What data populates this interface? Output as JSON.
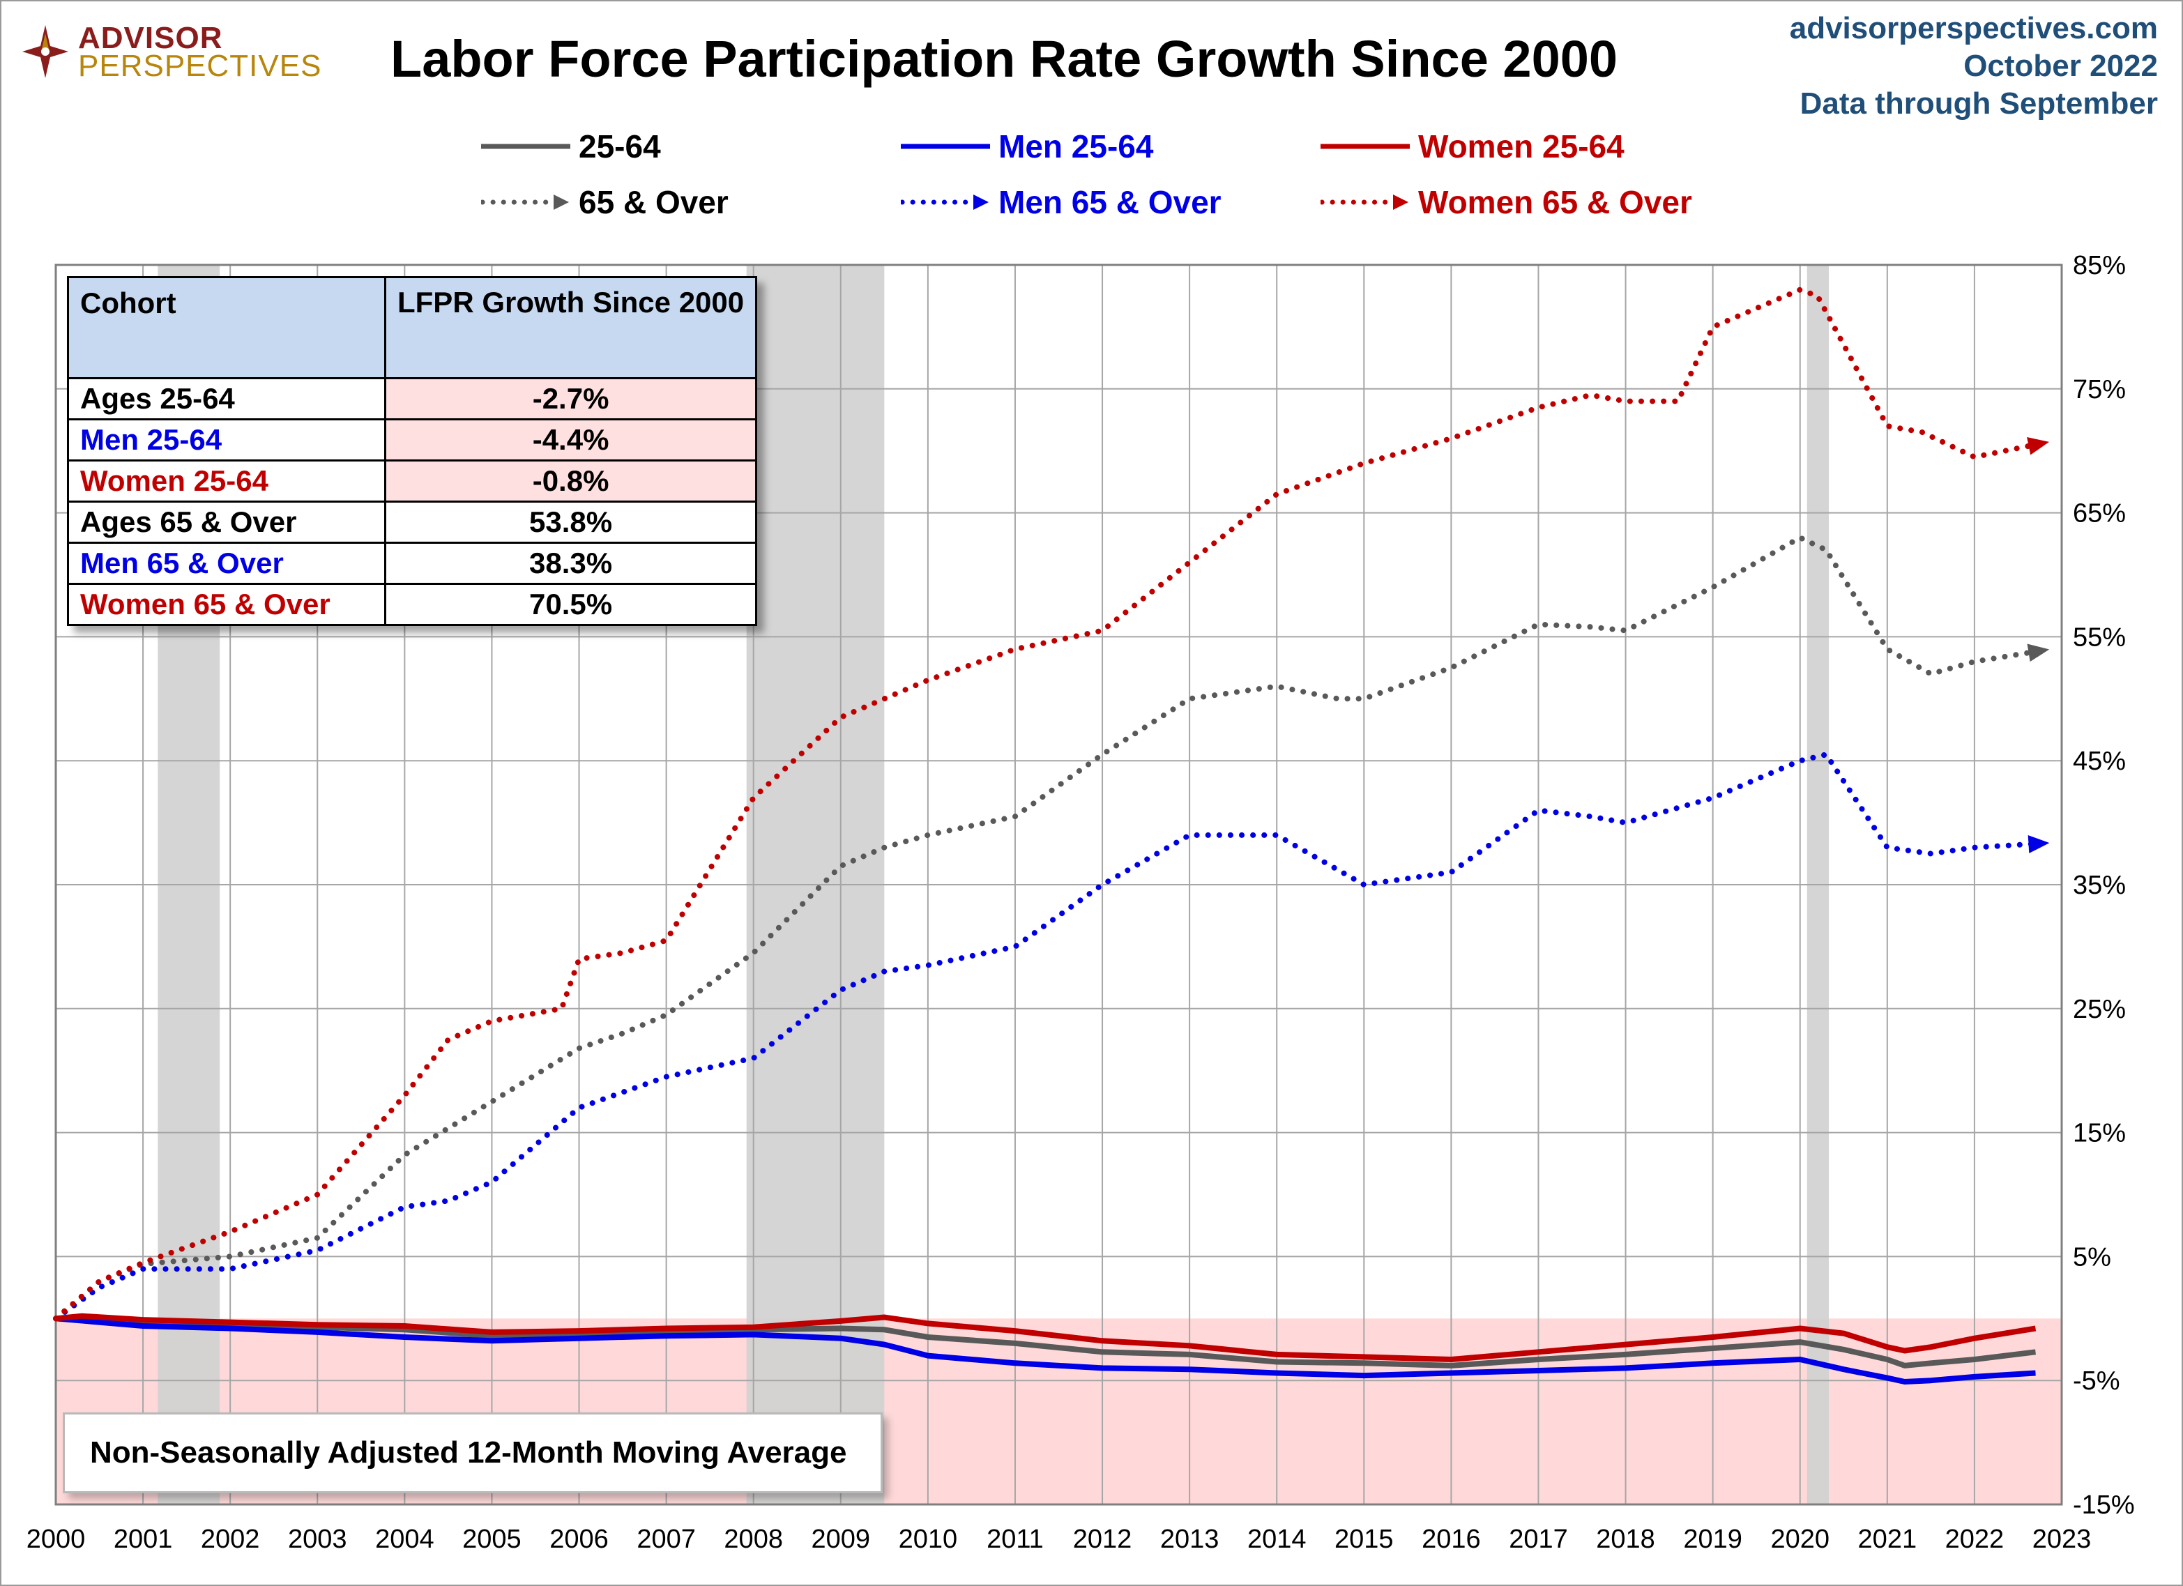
{
  "header": {
    "logo_line1": "ADVISOR",
    "logo_line2": "PERSPECTIVES",
    "title": "Labor Force Participation Rate Growth Since 2000",
    "site": "advisorperspectives.com",
    "date": "October 2022",
    "data_through": "Data through September"
  },
  "legend": {
    "all_25_64": "25-64",
    "men_25_64": "Men 25-64",
    "women_25_64": "Women 25-64",
    "all_65": "65 & Over",
    "men_65": "Men 65 & Over",
    "women_65": "Women 65 & Over"
  },
  "table": {
    "header_cohort": "Cohort",
    "header_growth": "LFPR Growth Since 2000",
    "rows": [
      {
        "label": "Ages 25-64",
        "value": "-2.7%",
        "color": "#000000"
      },
      {
        "label": "Men 25-64",
        "value": "-4.4%",
        "color": "#0000e6"
      },
      {
        "label": "Women 25-64",
        "value": "-0.8%",
        "color": "#c00000"
      },
      {
        "label": "Ages 65 & Over",
        "value": "53.8%",
        "color": "#000000"
      },
      {
        "label": "Men 65 & Over",
        "value": "38.3%",
        "color": "#0000e6"
      },
      {
        "label": "Women 65 & Over",
        "value": "70.5%",
        "color": "#c00000"
      }
    ]
  },
  "note": "Non-Seasonally Adjusted 12-Month Moving Average",
  "colors": {
    "gray": "#595959",
    "blue": "#0000e6",
    "red": "#c00000",
    "recession": "#d0d0d0",
    "negative_zone": "#ffd9d9",
    "grid": "#a6a6a6"
  },
  "chart_data": {
    "type": "line",
    "title": "Labor Force Participation Rate Growth Since 2000",
    "xlabel": "",
    "ylabel": "",
    "xlim": [
      2000,
      2023
    ],
    "ylim": [
      -15,
      85
    ],
    "x_ticks": [
      "2000",
      "2001",
      "2002",
      "2003",
      "2004",
      "2005",
      "2006",
      "2007",
      "2008",
      "2009",
      "2010",
      "2011",
      "2012",
      "2013",
      "2014",
      "2015",
      "2016",
      "2017",
      "2018",
      "2019",
      "2020",
      "2021",
      "2022",
      "2023"
    ],
    "y_ticks": [
      {
        "value": 85,
        "label": "85%"
      },
      {
        "value": 75,
        "label": "75%"
      },
      {
        "value": 65,
        "label": "65%"
      },
      {
        "value": 55,
        "label": "55%"
      },
      {
        "value": 45,
        "label": "45%"
      },
      {
        "value": 35,
        "label": "35%"
      },
      {
        "value": 25,
        "label": "25%"
      },
      {
        "value": 15,
        "label": "15%"
      },
      {
        "value": 5,
        "label": "5%"
      },
      {
        "value": -5,
        "label": "-5%"
      },
      {
        "value": -15,
        "label": "-15%"
      }
    ],
    "recessions": [
      [
        2001.17,
        2001.88
      ],
      [
        2007.92,
        2009.5
      ],
      [
        2020.08,
        2020.33
      ]
    ],
    "series": [
      {
        "name": "25-64",
        "color": "#595959",
        "style": "solid",
        "x": [
          2000,
          2001,
          2002,
          2003,
          2004,
          2005,
          2006,
          2007,
          2008,
          2009,
          2009.5,
          2010,
          2011,
          2012,
          2013,
          2014,
          2015,
          2016,
          2017,
          2018,
          2019,
          2020,
          2020.5,
          2021,
          2021.2,
          2021.5,
          2022,
          2022.7
        ],
        "y": [
          0,
          -0.4,
          -0.6,
          -0.7,
          -0.9,
          -1.4,
          -1.3,
          -1.0,
          -0.9,
          -0.8,
          -0.9,
          -1.5,
          -2.0,
          -2.7,
          -2.9,
          -3.5,
          -3.6,
          -3.8,
          -3.3,
          -2.9,
          -2.4,
          -1.9,
          -2.5,
          -3.3,
          -3.8,
          -3.6,
          -3.3,
          -2.7
        ]
      },
      {
        "name": "Men 25-64",
        "color": "#0000e6",
        "style": "solid",
        "x": [
          2000,
          2001,
          2002,
          2003,
          2004,
          2005,
          2006,
          2007,
          2008,
          2009,
          2009.5,
          2010,
          2011,
          2012,
          2013,
          2014,
          2015,
          2016,
          2017,
          2018,
          2019,
          2020,
          2020.5,
          2021,
          2021.2,
          2021.5,
          2022,
          2022.7
        ],
        "y": [
          0,
          -0.6,
          -0.8,
          -1.1,
          -1.5,
          -1.8,
          -1.6,
          -1.4,
          -1.3,
          -1.6,
          -2.1,
          -3.0,
          -3.6,
          -4.0,
          -4.1,
          -4.4,
          -4.6,
          -4.4,
          -4.2,
          -4.0,
          -3.6,
          -3.3,
          -4.1,
          -4.8,
          -5.1,
          -5.0,
          -4.7,
          -4.4
        ]
      },
      {
        "name": "Women 25-64",
        "color": "#c00000",
        "style": "solid",
        "x": [
          2000,
          2000.3,
          2001,
          2002,
          2003,
          2004,
          2005,
          2006,
          2007,
          2008,
          2009,
          2009.5,
          2010,
          2011,
          2012,
          2013,
          2014,
          2015,
          2016,
          2017,
          2018,
          2019,
          2020,
          2020.5,
          2021,
          2021.2,
          2021.5,
          2022,
          2022.7
        ],
        "y": [
          0,
          0.2,
          -0.1,
          -0.3,
          -0.5,
          -0.6,
          -1.1,
          -1.0,
          -0.8,
          -0.7,
          -0.2,
          0.1,
          -0.4,
          -1.0,
          -1.8,
          -2.2,
          -2.9,
          -3.1,
          -3.3,
          -2.7,
          -2.1,
          -1.5,
          -0.8,
          -1.2,
          -2.3,
          -2.6,
          -2.3,
          -1.6,
          -0.8
        ]
      },
      {
        "name": "65 & Over",
        "color": "#595959",
        "style": "dotted",
        "x": [
          2000,
          2000.5,
          2001,
          2002,
          2003,
          2004,
          2005,
          2006,
          2006.5,
          2007,
          2008,
          2009,
          2009.5,
          2010,
          2011,
          2012,
          2013,
          2014,
          2014.7,
          2015,
          2016,
          2017,
          2017.6,
          2018,
          2019,
          2020,
          2020.3,
          2021,
          2021.5,
          2022,
          2022.7
        ],
        "y": [
          0,
          3.0,
          4.4,
          5.0,
          6.5,
          13.2,
          17.5,
          21.8,
          23.0,
          24.5,
          29.5,
          36.5,
          38.0,
          39.0,
          40.5,
          45.5,
          50.0,
          51.0,
          50.0,
          50.0,
          52.5,
          56.0,
          55.8,
          55.5,
          59.0,
          63.0,
          62.0,
          54.0,
          52.0,
          53.0,
          53.8
        ]
      },
      {
        "name": "Men 65 & Over",
        "color": "#0000e6",
        "style": "dotted",
        "x": [
          2000,
          2000.5,
          2001,
          2002,
          2003,
          2004,
          2004.5,
          2005,
          2006,
          2007,
          2008,
          2009,
          2009.5,
          2010,
          2011,
          2012,
          2013,
          2014,
          2015,
          2016,
          2017,
          2017.6,
          2018,
          2019,
          2020,
          2020.3,
          2021,
          2021.5,
          2022,
          2022.7
        ],
        "y": [
          0,
          2.5,
          4.0,
          4.0,
          5.5,
          9.0,
          9.5,
          11.0,
          17.0,
          19.5,
          21.0,
          26.5,
          28.0,
          28.5,
          30.0,
          35.0,
          39.0,
          39.0,
          35.0,
          36.0,
          41.0,
          40.5,
          40.0,
          42.0,
          45.0,
          45.5,
          38.0,
          37.5,
          38.0,
          38.3
        ]
      },
      {
        "name": "Women 65 & Over",
        "color": "#c00000",
        "style": "dotted",
        "x": [
          2000,
          2000.5,
          2001,
          2002,
          2003,
          2003.5,
          2004,
          2004.5,
          2005,
          2005.8,
          2006,
          2006.5,
          2007,
          2008,
          2009,
          2009.5,
          2010,
          2011,
          2012,
          2013,
          2014,
          2015,
          2016,
          2017,
          2017.6,
          2018,
          2018.6,
          2019,
          2020,
          2020.2,
          2021,
          2021.4,
          2022,
          2022.7
        ],
        "y": [
          0,
          3.0,
          4.5,
          7.0,
          10.0,
          14.0,
          18.0,
          22.5,
          24.0,
          25.0,
          29.0,
          29.5,
          30.5,
          42.0,
          48.5,
          50.0,
          51.5,
          54.0,
          55.5,
          61.0,
          66.5,
          69.0,
          71.0,
          73.5,
          74.5,
          74.0,
          74.0,
          80.0,
          83.0,
          82.5,
          72.0,
          71.5,
          69.5,
          70.5
        ]
      }
    ]
  }
}
